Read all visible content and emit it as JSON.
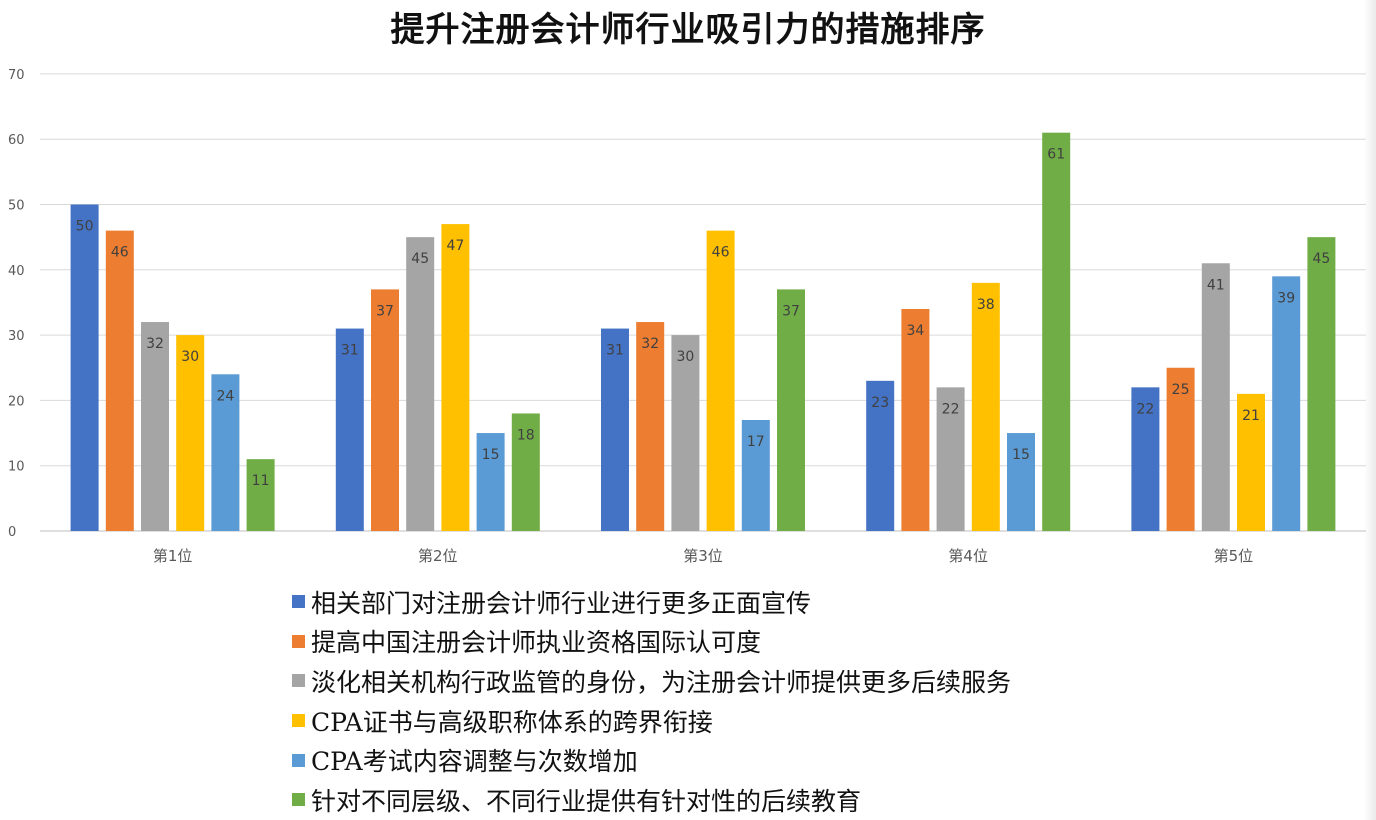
{
  "chart_data": {
    "type": "bar",
    "title": "提升注册会计师行业吸引力的措施排序",
    "categories": [
      "第1位",
      "第2位",
      "第3位",
      "第4位",
      "第5位"
    ],
    "ylim": [
      0,
      70
    ],
    "yticks": [
      0,
      10,
      20,
      30,
      40,
      50,
      60,
      70
    ],
    "grid": true,
    "legend_position": "bottom",
    "data_labels": true,
    "series": [
      {
        "name": "相关部门对注册会计师行业进行更多正面宣传",
        "color": "#4472c4",
        "values": [
          50,
          31,
          31,
          23,
          22
        ]
      },
      {
        "name": "提高中国注册会计师执业资格国际认可度",
        "color": "#ed7d31",
        "values": [
          46,
          37,
          32,
          34,
          25
        ]
      },
      {
        "name": "淡化相关机构行政监管的身份，为注册会计师提供更多后续服务",
        "color": "#a5a5a5",
        "values": [
          32,
          45,
          30,
          22,
          41
        ]
      },
      {
        "name": "CPA证书与高级职称体系的跨界衔接",
        "color": "#ffc000",
        "values": [
          30,
          47,
          46,
          38,
          21
        ]
      },
      {
        "name": "CPA考试内容调整与次数增加",
        "color": "#5b9bd5",
        "values": [
          24,
          15,
          17,
          15,
          39
        ]
      },
      {
        "name": "针对不同层级、不同行业提供有针对性的后续教育",
        "color": "#70ad47",
        "values": [
          11,
          18,
          37,
          61,
          45
        ]
      }
    ]
  }
}
